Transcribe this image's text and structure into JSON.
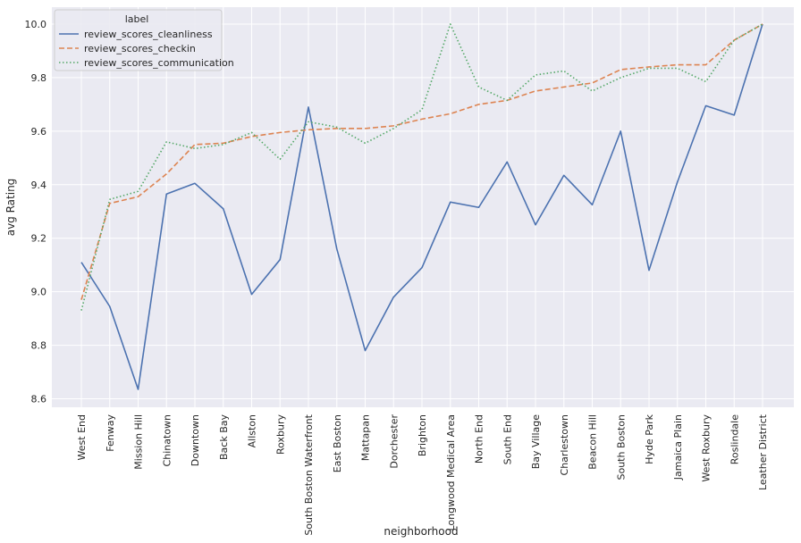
{
  "chart_data": {
    "type": "line",
    "xlabel": "neighborhood",
    "ylabel": "avg Rating",
    "ylim": [
      8.56,
      10.07
    ],
    "yticks": [
      8.6,
      8.8,
      9.0,
      9.2,
      9.4,
      9.6,
      9.8,
      10.0
    ],
    "grid": true,
    "legend": {
      "title": "label",
      "placement": "top-left"
    },
    "categories": [
      "West End",
      "Fenway",
      "Mission Hill",
      "Chinatown",
      "Downtown",
      "Back Bay",
      "Allston",
      "Roxbury",
      "South Boston Waterfront",
      "East Boston",
      "Mattapan",
      "Dorchester",
      "Brighton",
      "Longwood Medical Area",
      "North End",
      "South End",
      "Bay Village",
      "Charlestown",
      "Beacon Hill",
      "South Boston",
      "Hyde Park",
      "Jamaica Plain",
      "West Roxbury",
      "Roslindale",
      "Leather District"
    ],
    "series": [
      {
        "name": "review_scores_cleanliness",
        "color": "#4c72b0",
        "dash": "solid",
        "values": [
          9.11,
          8.945,
          8.635,
          9.365,
          9.405,
          9.31,
          8.99,
          9.12,
          9.69,
          9.16,
          8.78,
          8.98,
          9.09,
          9.335,
          9.315,
          9.485,
          9.25,
          9.435,
          9.325,
          9.6,
          9.08,
          9.41,
          9.695,
          9.66,
          10.0
        ]
      },
      {
        "name": "review_scores_checkin",
        "color": "#dd8452",
        "dash": "dashed",
        "values": [
          8.97,
          9.33,
          9.355,
          9.44,
          9.55,
          9.555,
          9.58,
          9.595,
          9.605,
          9.61,
          9.61,
          9.62,
          9.645,
          9.665,
          9.7,
          9.715,
          9.75,
          9.765,
          9.78,
          9.83,
          9.84,
          9.848,
          9.848,
          9.94,
          10.0
        ]
      },
      {
        "name": "review_scores_communication",
        "color": "#55a868",
        "dash": "dotted",
        "values": [
          8.93,
          9.345,
          9.375,
          9.56,
          9.535,
          9.55,
          9.595,
          9.495,
          9.635,
          9.615,
          9.555,
          9.61,
          9.68,
          10.0,
          9.765,
          9.715,
          9.81,
          9.825,
          9.75,
          9.8,
          9.835,
          9.835,
          9.785,
          9.94,
          10.0
        ]
      }
    ]
  }
}
